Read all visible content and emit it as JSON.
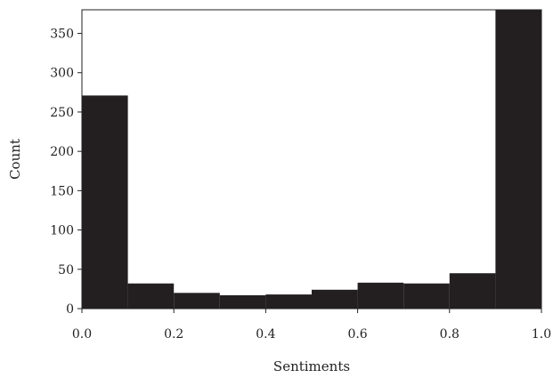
{
  "chart_data": {
    "type": "bar",
    "title": "",
    "xlabel": "Sentiments",
    "ylabel": "Count",
    "bin_edges": [
      0.0,
      0.1,
      0.2,
      0.3,
      0.4,
      0.5,
      0.6,
      0.7,
      0.8,
      0.9,
      1.0
    ],
    "values": [
      271,
      32,
      20,
      17,
      18,
      24,
      33,
      32,
      45,
      380
    ],
    "xlim": [
      0.0,
      1.0
    ],
    "ylim": [
      0,
      380
    ],
    "xticks": [
      "0.0",
      "0.2",
      "0.4",
      "0.6",
      "0.8",
      "1.0"
    ],
    "xtick_values": [
      0.0,
      0.2,
      0.4,
      0.6,
      0.8,
      1.0
    ],
    "yticks": [
      "0",
      "50",
      "100",
      "150",
      "200",
      "250",
      "300",
      "350"
    ],
    "ytick_values": [
      0,
      50,
      100,
      150,
      200,
      250,
      300,
      350
    ],
    "grid": false,
    "bar_color": "#231f20"
  }
}
